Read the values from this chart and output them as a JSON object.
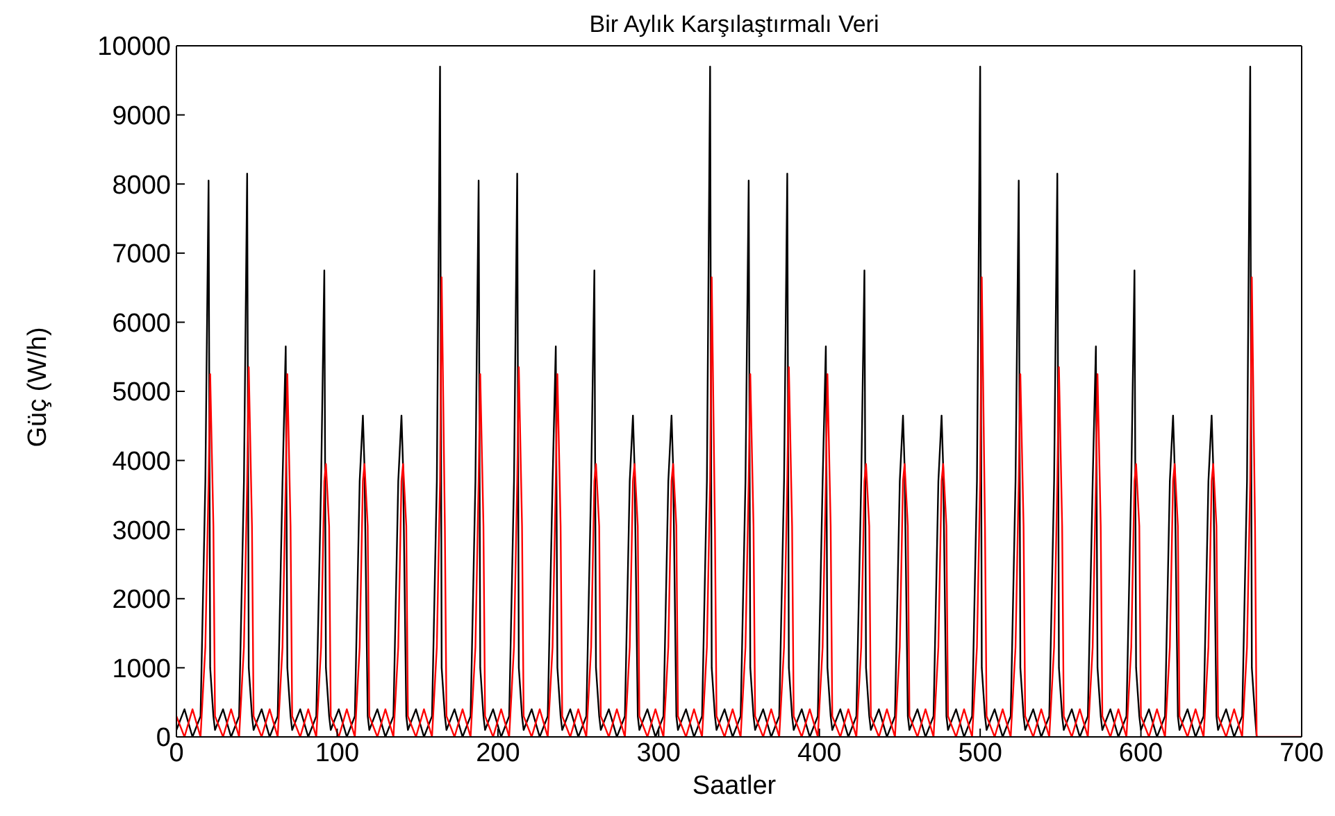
{
  "chart_data": {
    "type": "line",
    "title": "Bir Aylık Karşılaştırmalı Veri",
    "xlabel": "Saatler",
    "ylabel": "Güç (W/h)",
    "x": [
      0,
      5,
      10,
      15,
      18,
      20,
      21,
      23,
      24,
      29,
      34,
      39,
      42,
      44,
      45,
      47,
      48,
      53,
      58,
      63,
      66,
      68,
      69,
      71,
      72,
      77,
      82,
      87,
      90,
      92,
      93,
      95,
      96,
      101,
      106,
      111,
      114,
      116,
      117,
      119,
      120,
      125,
      130,
      135,
      138,
      140,
      141,
      143,
      144,
      149,
      154,
      159,
      162,
      164,
      165,
      167,
      168,
      173,
      178,
      183,
      186,
      188,
      189,
      191,
      192,
      197,
      202,
      207,
      210,
      212,
      213,
      215,
      216,
      221,
      226,
      231,
      234,
      236,
      237,
      239,
      240,
      245,
      250,
      255,
      258,
      260,
      261,
      263,
      264,
      269,
      274,
      279,
      282,
      284,
      285,
      287,
      288,
      293,
      298,
      303,
      306,
      308,
      309,
      311,
      312,
      317,
      322,
      327,
      330,
      332,
      333,
      335,
      336,
      341,
      346,
      351,
      354,
      356,
      357,
      359,
      360,
      365,
      370,
      375,
      378,
      380,
      381,
      383,
      384,
      389,
      394,
      399,
      402,
      404,
      405,
      407,
      408,
      413,
      418,
      423,
      426,
      428,
      429,
      431,
      432,
      437,
      442,
      447,
      450,
      452,
      453,
      455,
      456,
      461,
      466,
      471,
      474,
      476,
      477,
      479,
      480,
      485,
      490,
      495,
      498,
      500,
      501,
      503,
      504,
      509,
      514,
      519,
      522,
      524,
      525,
      527,
      528,
      533,
      538,
      543,
      546,
      548,
      549,
      551,
      552,
      557,
      562,
      567,
      570,
      572,
      573,
      575,
      576,
      581,
      586,
      591,
      594,
      596,
      597,
      599,
      600,
      605,
      610,
      615,
      618,
      620,
      621,
      623,
      624,
      629,
      634,
      639,
      642,
      644,
      645,
      647,
      648,
      653,
      658,
      663,
      666,
      668,
      669,
      671,
      672,
      700
    ],
    "series": [
      {
        "color": "#000000",
        "values": [
          100,
          400,
          0,
          300,
          3700,
          8050,
          1000,
          300,
          100,
          400,
          0,
          300,
          3700,
          8150,
          1000,
          300,
          100,
          400,
          0,
          300,
          3700,
          5650,
          1000,
          300,
          100,
          400,
          0,
          300,
          3700,
          6750,
          1000,
          300,
          100,
          400,
          0,
          300,
          3700,
          4650,
          3900,
          300,
          100,
          400,
          0,
          300,
          3700,
          4650,
          3900,
          300,
          100,
          400,
          0,
          300,
          3700,
          9700,
          1000,
          300,
          100,
          400,
          0,
          300,
          3700,
          8050,
          1000,
          300,
          100,
          400,
          0,
          300,
          3700,
          8150,
          1000,
          300,
          100,
          400,
          0,
          300,
          3700,
          5650,
          1000,
          300,
          100,
          400,
          0,
          300,
          3700,
          6750,
          1000,
          300,
          100,
          400,
          0,
          300,
          3700,
          4650,
          3900,
          300,
          100,
          400,
          0,
          300,
          3700,
          4650,
          3900,
          300,
          100,
          400,
          0,
          300,
          3700,
          9700,
          1000,
          300,
          100,
          400,
          0,
          300,
          3700,
          8050,
          1000,
          300,
          100,
          400,
          0,
          300,
          3700,
          8150,
          1000,
          300,
          100,
          400,
          0,
          300,
          3700,
          5650,
          1000,
          300,
          100,
          400,
          0,
          300,
          3700,
          6750,
          1000,
          300,
          100,
          400,
          0,
          300,
          3700,
          4650,
          3900,
          300,
          100,
          400,
          0,
          300,
          3700,
          4650,
          3900,
          300,
          100,
          400,
          0,
          300,
          3700,
          9700,
          1000,
          300,
          100,
          400,
          0,
          300,
          3700,
          8050,
          1000,
          300,
          100,
          400,
          0,
          300,
          3700,
          8150,
          1000,
          300,
          100,
          400,
          0,
          300,
          3700,
          5650,
          1000,
          300,
          100,
          400,
          0,
          300,
          3700,
          6750,
          1000,
          300,
          100,
          400,
          0,
          300,
          3700,
          4650,
          3900,
          300,
          100,
          400,
          0,
          300,
          3700,
          4650,
          3900,
          300,
          100,
          400,
          0,
          300,
          3700,
          9700,
          1000,
          300,
          0,
          null
        ]
      },
      {
        "color": "#ff0000",
        "values": [
          300,
          0,
          400,
          0,
          1300,
          3700,
          5250,
          3050,
          300,
          0,
          400,
          0,
          1300,
          3700,
          5350,
          3050,
          300,
          0,
          400,
          0,
          1300,
          3700,
          5250,
          3050,
          300,
          0,
          400,
          0,
          1300,
          3700,
          3950,
          3050,
          300,
          0,
          400,
          0,
          1300,
          3700,
          3950,
          3050,
          300,
          0,
          400,
          0,
          1300,
          3700,
          3950,
          3050,
          300,
          0,
          400,
          0,
          1300,
          3700,
          6650,
          3050,
          300,
          0,
          400,
          0,
          1300,
          3700,
          5250,
          3050,
          300,
          0,
          400,
          0,
          1300,
          3700,
          5350,
          3050,
          300,
          0,
          400,
          0,
          1300,
          3700,
          5250,
          3050,
          300,
          0,
          400,
          0,
          1300,
          3700,
          3950,
          3050,
          300,
          0,
          400,
          0,
          1300,
          3700,
          3950,
          3050,
          300,
          0,
          400,
          0,
          1300,
          3700,
          3950,
          3050,
          300,
          0,
          400,
          0,
          1300,
          3700,
          6650,
          3050,
          300,
          0,
          400,
          0,
          1300,
          3700,
          5250,
          3050,
          300,
          0,
          400,
          0,
          1300,
          3700,
          5350,
          3050,
          300,
          0,
          400,
          0,
          1300,
          3700,
          5250,
          3050,
          300,
          0,
          400,
          0,
          1300,
          3700,
          3950,
          3050,
          300,
          0,
          400,
          0,
          1300,
          3700,
          3950,
          3050,
          300,
          0,
          400,
          0,
          1300,
          3700,
          3950,
          3050,
          300,
          0,
          400,
          0,
          1300,
          3700,
          6650,
          3050,
          300,
          0,
          400,
          0,
          1300,
          3700,
          5250,
          3050,
          300,
          0,
          400,
          0,
          1300,
          3700,
          5350,
          3050,
          300,
          0,
          400,
          0,
          1300,
          3700,
          5250,
          3050,
          300,
          0,
          400,
          0,
          1300,
          3700,
          3950,
          3050,
          300,
          0,
          400,
          0,
          1300,
          3700,
          3950,
          3050,
          300,
          0,
          400,
          0,
          1300,
          3700,
          3950,
          3050,
          300,
          0,
          400,
          0,
          1300,
          3700,
          6650,
          3050,
          0,
          0
        ]
      }
    ],
    "xlim": [
      0,
      700
    ],
    "xticks": [
      0,
      100,
      200,
      300,
      400,
      500,
      600,
      700
    ],
    "ylim": [
      0,
      10000
    ],
    "yticks": [
      0,
      1000,
      2000,
      3000,
      4000,
      5000,
      6000,
      7000,
      8000,
      9000,
      10000
    ]
  }
}
